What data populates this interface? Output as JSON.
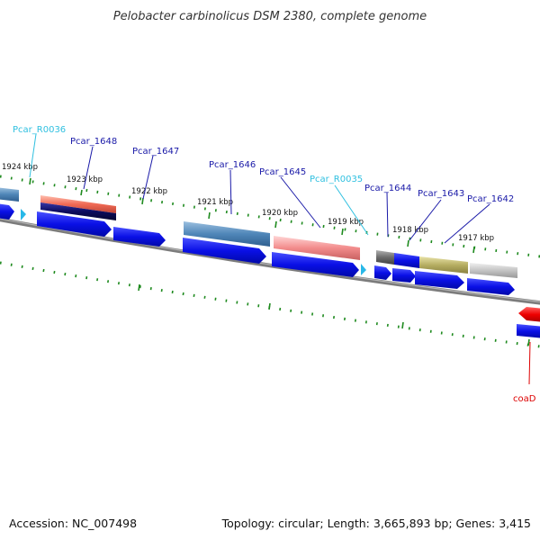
{
  "title": "Pelobacter carbinolicus DSM 2380, complete genome",
  "footer": {
    "accession": "Accession: NC_007498",
    "summary": "Topology: circular; Length: 3,665,893 bp; Genes: 3,415"
  },
  "colors": {
    "backbone": "#808080",
    "cds": "#0a10e6",
    "tick": "#1e8a1e",
    "gene_label": "#1a1aa8",
    "rna_label": "#30c0e0",
    "red_label": "#dd0000"
  },
  "kbp_labels": [
    {
      "text": "1924 kbp"
    },
    {
      "text": "1923 kbp"
    },
    {
      "text": "1922 kbp"
    },
    {
      "text": "1921 kbp"
    },
    {
      "text": "1920 kbp"
    },
    {
      "text": "1919 kbp"
    },
    {
      "text": "1918 kbp"
    },
    {
      "text": "1917 kbp"
    }
  ],
  "gene_labels": [
    {
      "text": "Pcar_R0036",
      "kind": "rna"
    },
    {
      "text": "Pcar_1648",
      "kind": "gene"
    },
    {
      "text": "Pcar_1647",
      "kind": "gene"
    },
    {
      "text": "Pcar_1646",
      "kind": "gene"
    },
    {
      "text": "Pcar_1645",
      "kind": "gene"
    },
    {
      "text": "Pcar_R0035",
      "kind": "rna"
    },
    {
      "text": "Pcar_1644",
      "kind": "gene"
    },
    {
      "text": "Pcar_1643",
      "kind": "gene"
    },
    {
      "text": "Pcar_1642",
      "kind": "gene"
    },
    {
      "text": "coaD",
      "kind": "red"
    }
  ]
}
